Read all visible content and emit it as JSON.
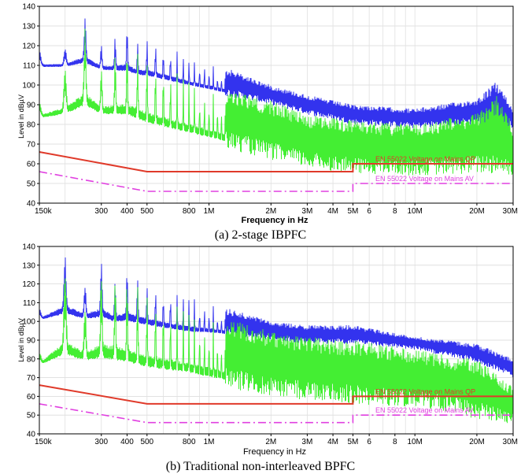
{
  "chart_data": [
    {
      "type": "line",
      "caption": "(a) 2-stage IBPFC",
      "xlabel": "Frequency in Hz",
      "ylabel": "Level in dBµV",
      "x_scale": "log",
      "xlim": [
        150000,
        30000000
      ],
      "ylim": [
        40,
        140
      ],
      "x_tick_labels": [
        "150k",
        "300",
        "400",
        "500",
        "800",
        "1M",
        "2M",
        "3M",
        "4M",
        "5M",
        "6",
        "8",
        "10M",
        "20M",
        "30M"
      ],
      "y_tick_labels": [
        "40",
        "50",
        "60",
        "70",
        "80",
        "90",
        "100",
        "110",
        "120",
        "130",
        "140"
      ],
      "series": [
        {
          "color": "#3333ee",
          "peaks": [
            [
              150000,
              118
            ],
            [
              200000,
              119
            ],
            [
              250000,
              135
            ],
            [
              300000,
              121
            ],
            [
              350000,
              125
            ],
            [
              400000,
              131
            ],
            [
              450000,
              122
            ],
            [
              500000,
              126
            ],
            [
              600000,
              121
            ],
            [
              800000,
              115
            ],
            [
              1000000,
              112
            ],
            [
              2000000,
              100
            ],
            [
              3000000,
              95
            ],
            [
              5000000,
              90
            ],
            [
              10000000,
              88
            ],
            [
              20000000,
              93
            ],
            [
              25000000,
              102
            ],
            [
              30000000,
              88
            ]
          ],
          "floor": [
            [
              150000,
              108
            ],
            [
              200000,
              108
            ],
            [
              250000,
              108
            ],
            [
              300000,
              106
            ],
            [
              400000,
              104
            ],
            [
              500000,
              102
            ],
            [
              800000,
              98
            ],
            [
              1000000,
              96
            ],
            [
              2000000,
              90
            ],
            [
              3000000,
              85
            ],
            [
              5000000,
              80
            ],
            [
              10000000,
              78
            ],
            [
              20000000,
              80
            ],
            [
              30000000,
              78
            ]
          ]
        },
        {
          "color": "#44ee33",
          "peaks": [
            [
              150000,
              92
            ],
            [
              200000,
              110
            ],
            [
              250000,
              132
            ],
            [
              300000,
              110
            ],
            [
              400000,
              122
            ],
            [
              500000,
              118
            ],
            [
              600000,
              112
            ],
            [
              800000,
              105
            ],
            [
              1000000,
              100
            ],
            [
              2000000,
              92
            ],
            [
              3000000,
              85
            ],
            [
              5000000,
              82
            ],
            [
              10000000,
              80
            ],
            [
              20000000,
              86
            ],
            [
              25000000,
              95
            ],
            [
              30000000,
              80
            ]
          ],
          "floor": [
            [
              150000,
              82
            ],
            [
              200000,
              82
            ],
            [
              250000,
              84
            ],
            [
              300000,
              82
            ],
            [
              400000,
              80
            ],
            [
              500000,
              76
            ],
            [
              800000,
              72
            ],
            [
              1000000,
              70
            ],
            [
              2000000,
              62
            ],
            [
              3000000,
              58
            ],
            [
              5000000,
              55
            ],
            [
              10000000,
              54
            ],
            [
              20000000,
              55
            ],
            [
              30000000,
              54
            ]
          ]
        }
      ],
      "limit_lines": [
        {
          "label": "EN 55022 Voltage on Mains QP",
          "color": "#e03a2a",
          "dash": "solid",
          "points": [
            [
              150000,
              66
            ],
            [
              500000,
              56
            ],
            [
              5000000,
              56
            ],
            [
              5000000,
              60
            ],
            [
              30000000,
              60
            ]
          ]
        },
        {
          "label": "EN 55022 Voltage on Mains AV",
          "color": "#e040e0",
          "dash": "dashdot",
          "points": [
            [
              150000,
              56
            ],
            [
              500000,
              46
            ],
            [
              5000000,
              46
            ],
            [
              5000000,
              50
            ],
            [
              30000000,
              50
            ]
          ]
        }
      ]
    },
    {
      "type": "line",
      "caption": "(b) Traditional non-interleaved BPFC",
      "xlabel": "Frequency in Hz",
      "ylabel": "Level in dBµV",
      "x_scale": "log",
      "xlim": [
        150000,
        30000000
      ],
      "ylim": [
        40,
        140
      ],
      "x_tick_labels": [
        "150k",
        "300",
        "400",
        "500",
        "800",
        "1M",
        "2M",
        "3M",
        "4M",
        "5M",
        "6",
        "8",
        "10M",
        "20M",
        "30M"
      ],
      "y_tick_labels": [
        "40",
        "50",
        "60",
        "70",
        "80",
        "90",
        "100",
        "110",
        "120",
        "130",
        "140"
      ],
      "series": [
        {
          "color": "#3333ee",
          "peaks": [
            [
              150000,
              106
            ],
            [
              200000,
              135
            ],
            [
              250000,
              120
            ],
            [
              300000,
              134
            ],
            [
              350000,
              122
            ],
            [
              400000,
              131
            ],
            [
              500000,
              122
            ],
            [
              600000,
              118
            ],
            [
              800000,
              114
            ],
            [
              1000000,
              110
            ],
            [
              2000000,
              100
            ],
            [
              3000000,
              98
            ],
            [
              5000000,
              98
            ],
            [
              10000000,
              92
            ],
            [
              20000000,
              88
            ],
            [
              30000000,
              80
            ]
          ],
          "floor": [
            [
              150000,
              100
            ],
            [
              200000,
              100
            ],
            [
              300000,
              98
            ],
            [
              400000,
              96
            ],
            [
              500000,
              95
            ],
            [
              800000,
              92
            ],
            [
              1000000,
              92
            ],
            [
              2000000,
              90
            ],
            [
              3000000,
              88
            ],
            [
              5000000,
              88
            ],
            [
              10000000,
              85
            ],
            [
              20000000,
              78
            ],
            [
              30000000,
              70
            ]
          ]
        },
        {
          "color": "#44ee33",
          "peaks": [
            [
              150000,
              82
            ],
            [
              200000,
              130
            ],
            [
              250000,
              110
            ],
            [
              300000,
              130
            ],
            [
              400000,
              126
            ],
            [
              500000,
              118
            ],
            [
              600000,
              114
            ],
            [
              800000,
              108
            ],
            [
              1000000,
              104
            ],
            [
              2000000,
              95
            ],
            [
              3000000,
              92
            ],
            [
              5000000,
              90
            ],
            [
              10000000,
              85
            ],
            [
              20000000,
              80
            ],
            [
              30000000,
              65
            ]
          ],
          "floor": [
            [
              150000,
              76
            ],
            [
              200000,
              76
            ],
            [
              300000,
              74
            ],
            [
              400000,
              72
            ],
            [
              500000,
              70
            ],
            [
              800000,
              68
            ],
            [
              1000000,
              66
            ],
            [
              2000000,
              60
            ],
            [
              3000000,
              58
            ],
            [
              5000000,
              56
            ],
            [
              10000000,
              54
            ],
            [
              20000000,
              48
            ],
            [
              30000000,
              45
            ]
          ]
        }
      ],
      "limit_lines": [
        {
          "label": "EN 55022 Voltage on Mains QP",
          "color": "#e03a2a",
          "dash": "solid",
          "points": [
            [
              150000,
              66
            ],
            [
              500000,
              56
            ],
            [
              5000000,
              56
            ],
            [
              5000000,
              60
            ],
            [
              30000000,
              60
            ]
          ]
        },
        {
          "label": "EN 55022 Voltage on Mains AV",
          "color": "#e040e0",
          "dash": "dashdot",
          "points": [
            [
              150000,
              56
            ],
            [
              500000,
              46
            ],
            [
              5000000,
              46
            ],
            [
              5000000,
              50
            ],
            [
              30000000,
              50
            ]
          ]
        }
      ]
    }
  ]
}
